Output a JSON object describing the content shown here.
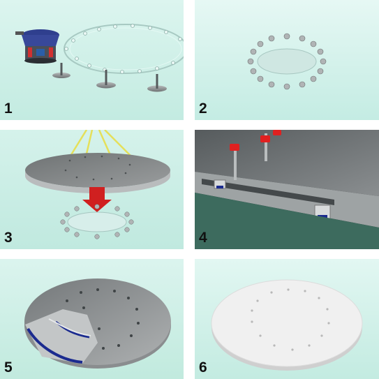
{
  "panels": [
    {
      "number": "1"
    },
    {
      "number": "2"
    },
    {
      "number": "3"
    },
    {
      "number": "4"
    },
    {
      "number": "5"
    },
    {
      "number": "6"
    }
  ],
  "colors": {
    "background": "#c9eee6",
    "steel": "#8d9091",
    "accent_red": "#e02020",
    "gasket_blue": "#1b2b8f",
    "lift_strap_yellow": "#e7e25a",
    "coated_surface": "#f1f1f1",
    "divider": "#ffffff"
  }
}
